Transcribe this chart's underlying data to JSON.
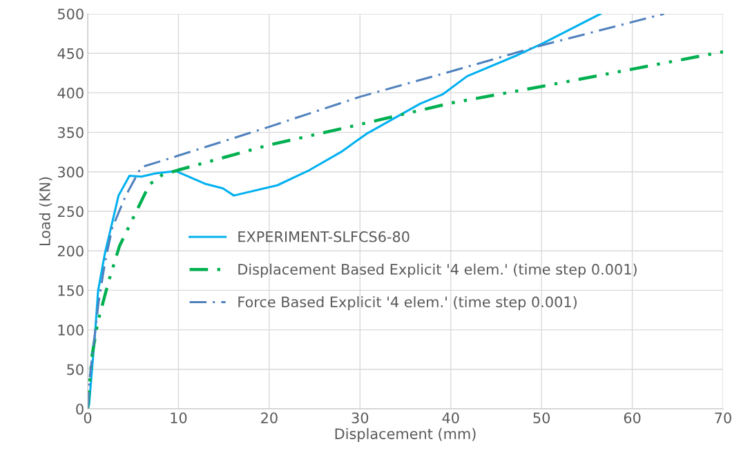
{
  "chart_data": {
    "type": "line",
    "xlabel": "Displacement (mm)",
    "ylabel": "Load (KN)",
    "xlim": [
      0,
      70
    ],
    "ylim": [
      0,
      500
    ],
    "xticks": [
      0,
      10,
      20,
      30,
      40,
      50,
      60,
      70
    ],
    "yticks": [
      0,
      50,
      100,
      150,
      200,
      250,
      300,
      350,
      400,
      450,
      500
    ],
    "grid": true,
    "legend": "center",
    "series": [
      {
        "name": "EXPERIMENT-SLFCS6-80",
        "color": "#00b0f0",
        "line_style": "solid",
        "x": [
          0,
          0.15,
          0.84,
          1.14,
          1.9,
          2.5,
          3.4,
          4.6,
          5.9,
          7.5,
          9.7,
          12.9,
          14.9,
          16.1,
          20.9,
          24.4,
          27.9,
          30.7,
          36.6,
          39.1,
          41.8,
          47.4,
          50.2,
          56.5
        ],
        "values": [
          0,
          5,
          100,
          149,
          197,
          226,
          270,
          295,
          294,
          298,
          301,
          285,
          279,
          270,
          283,
          302,
          325,
          348,
          386,
          398,
          421,
          448,
          463,
          500
        ]
      },
      {
        "name": "Displacement Based Explicit '4 elem.' (time step 0.001)",
        "color": "#00b050",
        "line_style": "dashdotdot",
        "x": [
          0,
          0.15,
          0.5,
          1.1,
          1.9,
          2.4,
          3.5,
          5.2,
          6.8,
          8.2,
          9.9,
          20,
          30,
          40,
          50,
          60,
          70
        ],
        "values": [
          0,
          25,
          69,
          109,
          144,
          165,
          206,
          246,
          284,
          296,
          302,
          334,
          360,
          387,
          408,
          430,
          452
        ]
      },
      {
        "name": "Force Based Explicit '4 elem.' (time step 0.001)",
        "color": "#4f81bd",
        "line_style": "dashdot",
        "x": [
          0,
          0.2,
          1.2,
          1.9,
          2.7,
          4.2,
          5.9,
          8.2,
          20,
          30,
          40,
          50,
          63.5
        ],
        "values": [
          0,
          37,
          135,
          185,
          229,
          270,
          306,
          314,
          357,
          395,
          427,
          460,
          500
        ]
      }
    ]
  }
}
